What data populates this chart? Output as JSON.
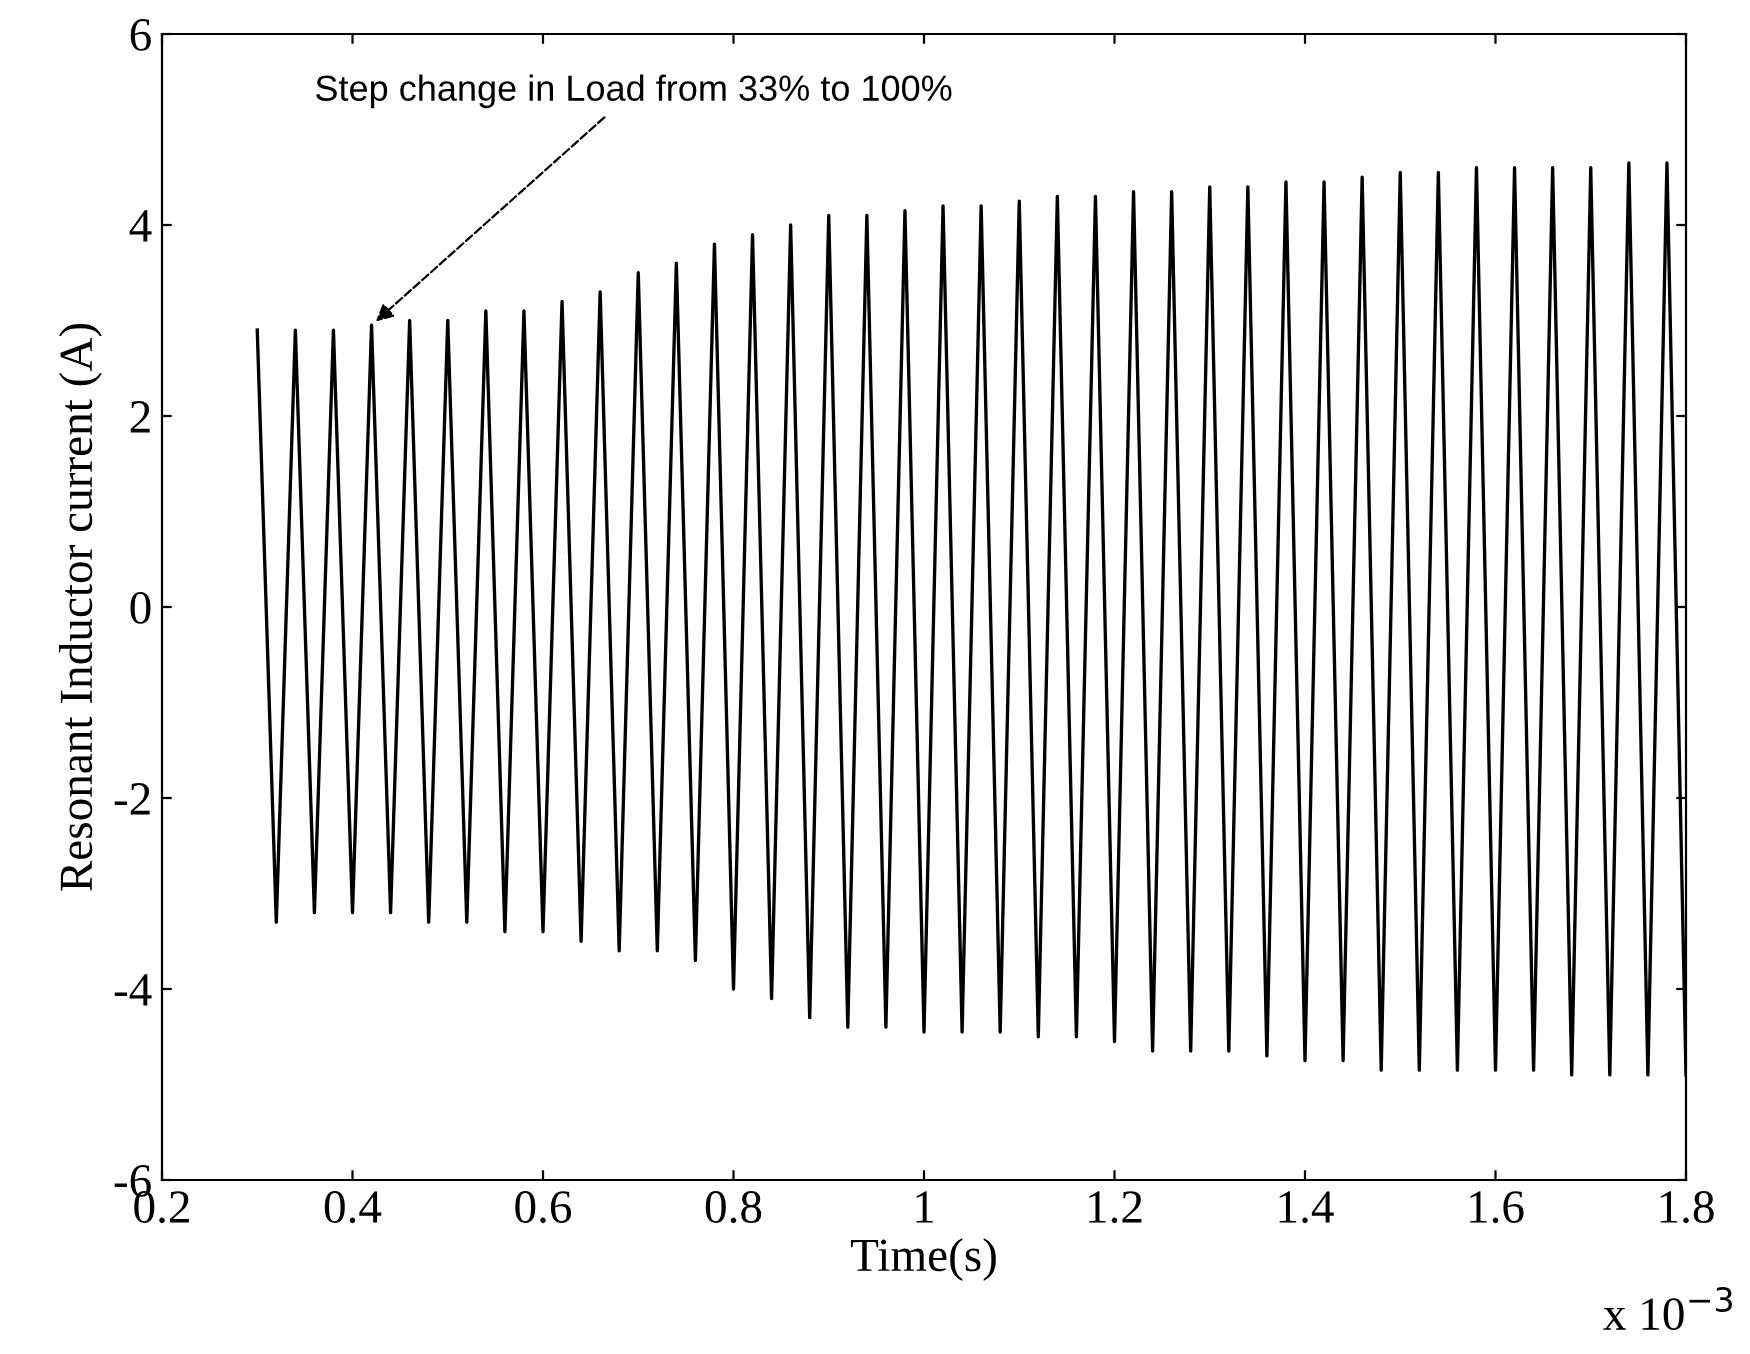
{
  "chart_data": {
    "type": "line",
    "xlabel": "Time(s)",
    "ylabel": "Resonant Inductor current (A)",
    "annotations": [
      {
        "text": "Step change in Load from 33% to 100%",
        "x": 0.42,
        "y": 2.95
      },
      "x 10$^{−3}$"
    ],
    "x": [
      0.3,
      0.32,
      0.34,
      0.36,
      0.38,
      0.4,
      0.42,
      0.44,
      0.46,
      0.48,
      0.5,
      0.52,
      0.54,
      0.56,
      0.58,
      0.6,
      0.62,
      0.64,
      0.66,
      0.68,
      0.7,
      0.72,
      0.74,
      0.76,
      0.78,
      0.8,
      0.82,
      0.84,
      0.86,
      0.88,
      0.9,
      0.92,
      0.94,
      0.96,
      0.98,
      1.0,
      1.02,
      1.04,
      1.06,
      1.08,
      1.1,
      1.12,
      1.14,
      1.16,
      1.18,
      1.2,
      1.22,
      1.24,
      1.26,
      1.28,
      1.3,
      1.32,
      1.34,
      1.36,
      1.38,
      1.4,
      1.42,
      1.44,
      1.46,
      1.48,
      1.5,
      1.52,
      1.54,
      1.56,
      1.58,
      1.6,
      1.62,
      1.64,
      1.66,
      1.68,
      1.7,
      1.72,
      1.74,
      1.76,
      1.78,
      1.8
    ],
    "series": [
      {
        "color": "#000000",
        "values": [
          2.9,
          -3.3,
          2.9,
          -3.2,
          2.9,
          -3.2,
          2.95,
          -3.2,
          3.0,
          -3.3,
          3.0,
          -3.3,
          3.1,
          -3.4,
          3.1,
          -3.4,
          3.2,
          -3.5,
          3.3,
          -3.6,
          3.5,
          -3.6,
          3.6,
          -3.7,
          3.8,
          -4.0,
          3.9,
          -4.1,
          4.0,
          -4.3,
          4.1,
          -4.4,
          4.1,
          -4.4,
          4.15,
          -4.45,
          4.2,
          -4.45,
          4.2,
          -4.45,
          4.25,
          -4.5,
          4.3,
          -4.5,
          4.3,
          -4.55,
          4.35,
          -4.65,
          4.35,
          -4.65,
          4.4,
          -4.65,
          4.4,
          -4.7,
          4.45,
          -4.75,
          4.45,
          -4.75,
          4.5,
          -4.85,
          4.55,
          -4.85,
          4.55,
          -4.85,
          4.6,
          -4.85,
          4.6,
          -4.85,
          4.6,
          -4.9,
          4.6,
          -4.9,
          4.65,
          -4.9,
          4.65,
          -4.9
        ]
      }
    ],
    "xlim": [
      0.2,
      1.8
    ],
    "xticks": [
      0.2,
      0.4,
      0.6,
      0.8,
      1,
      1.2,
      1.4,
      1.6,
      1.8
    ],
    "ylim": [
      -6,
      6
    ],
    "yticks": [
      -6,
      -4,
      -2,
      0,
      2,
      4,
      6
    ],
    "grid": false,
    "legend": false,
    "marker": "none",
    "line_style": "solid"
  }
}
